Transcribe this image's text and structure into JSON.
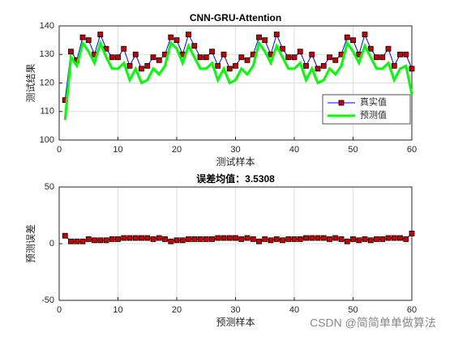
{
  "chart_data": [
    {
      "type": "line",
      "title": "CNN-GRU-Attention",
      "xlabel": "测试样本",
      "ylabel": "测试结果",
      "x": [
        1,
        2,
        3,
        4,
        5,
        6,
        7,
        8,
        9,
        10,
        11,
        12,
        13,
        14,
        15,
        16,
        17,
        18,
        19,
        20,
        21,
        22,
        23,
        24,
        25,
        26,
        27,
        28,
        29,
        30,
        31,
        32,
        33,
        34,
        35,
        36,
        37,
        38,
        39,
        40,
        41,
        42,
        43,
        44,
        45,
        46,
        47,
        48,
        49,
        50,
        51,
        52,
        53,
        54,
        55,
        56,
        57,
        58,
        59,
        60
      ],
      "series": [
        {
          "name": "真实值",
          "color": "#0000ff",
          "marker": "square",
          "marker_color": "#cc0000",
          "values": [
            114,
            131,
            128,
            136,
            135,
            130,
            137,
            132,
            129,
            129,
            132,
            126,
            130,
            125,
            126,
            129,
            128,
            130,
            136,
            135,
            130,
            137,
            133,
            129,
            129,
            131,
            126,
            130,
            125,
            126,
            129,
            128,
            130,
            136,
            135,
            130,
            137,
            132,
            129,
            129,
            131,
            126,
            130,
            125,
            126,
            129,
            128,
            130,
            136,
            135,
            130,
            137,
            132,
            129,
            129,
            132,
            126,
            130,
            130,
            125
          ]
        },
        {
          "name": "预测值",
          "color": "#00ff00",
          "values": [
            107,
            129,
            126,
            134,
            131,
            127,
            134,
            129,
            125,
            125,
            127,
            121,
            125,
            120,
            121,
            125,
            123,
            126,
            134,
            132,
            127,
            133,
            129,
            125,
            125,
            127,
            121,
            125,
            120,
            121,
            125,
            123,
            126,
            134,
            131,
            127,
            133,
            129,
            125,
            125,
            127,
            121,
            125,
            120,
            121,
            125,
            123,
            126,
            134,
            131,
            127,
            133,
            129,
            125,
            125,
            127,
            121,
            125,
            126,
            116
          ]
        }
      ],
      "xlim": [
        0,
        60
      ],
      "xticks": [
        0,
        10,
        20,
        30,
        40,
        50,
        60
      ],
      "ylim": [
        100,
        140
      ],
      "yticks": [
        100,
        110,
        120,
        130,
        140
      ],
      "grid": true,
      "legend": "lower right"
    },
    {
      "type": "line",
      "title": "误差均值：3.5308",
      "xlabel": "预测样本",
      "ylabel": "预测误差",
      "x": [
        1,
        2,
        3,
        4,
        5,
        6,
        7,
        8,
        9,
        10,
        11,
        12,
        13,
        14,
        15,
        16,
        17,
        18,
        19,
        20,
        21,
        22,
        23,
        24,
        25,
        26,
        27,
        28,
        29,
        30,
        31,
        32,
        33,
        34,
        35,
        36,
        37,
        38,
        39,
        40,
        41,
        42,
        43,
        44,
        45,
        46,
        47,
        48,
        49,
        50,
        51,
        52,
        53,
        54,
        55,
        56,
        57,
        58,
        59,
        60
      ],
      "series": [
        {
          "color": "#000000",
          "marker": "square",
          "marker_color": "#cc0000",
          "values": [
            7,
            2,
            2,
            2,
            4,
            3,
            3,
            3,
            4,
            4,
            5,
            5,
            5,
            5,
            5,
            4,
            5,
            4,
            2,
            3,
            3,
            4,
            4,
            4,
            4,
            4,
            5,
            5,
            5,
            5,
            4,
            5,
            4,
            2,
            4,
            3,
            4,
            3,
            4,
            4,
            4,
            5,
            5,
            5,
            5,
            4,
            5,
            4,
            2,
            4,
            3,
            4,
            3,
            4,
            4,
            5,
            5,
            5,
            4,
            9
          ]
        }
      ],
      "xlim": [
        0,
        60
      ],
      "xticks": [
        0,
        10,
        20,
        30,
        40,
        50,
        60
      ],
      "ylim": [
        -50,
        50
      ],
      "yticks": [
        -50,
        0,
        50
      ],
      "grid": true
    }
  ],
  "watermark": "CSDN @简简单单做算法"
}
